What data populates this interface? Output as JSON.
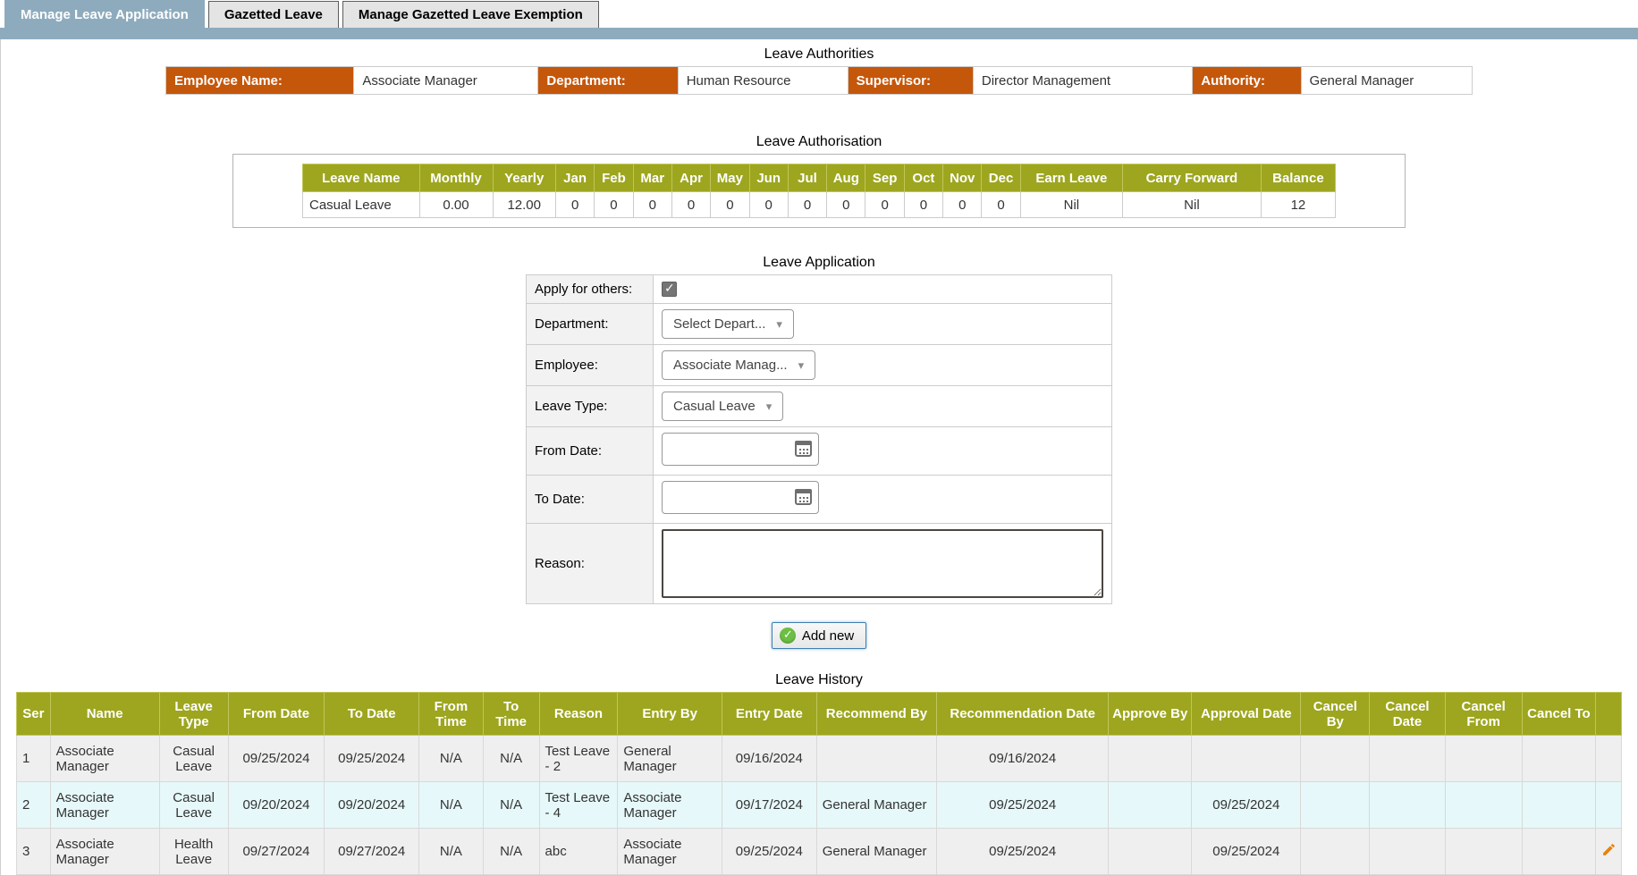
{
  "tabs": [
    {
      "label": "Manage Leave Application",
      "active": true
    },
    {
      "label": "Gazetted Leave",
      "active": false
    },
    {
      "label": "Manage Gazetted Leave Exemption",
      "active": false
    }
  ],
  "colors": {
    "accent_orange": "#C5570B",
    "olive_header": "#9DA61E",
    "active_tab_blue": "#8EABBE",
    "row_gray": "#EFEFEF",
    "row_cyan": "#E6F8FA",
    "add_button_border_blue": "#3C7FB1",
    "check_circle_green": "#6CBE44",
    "edit_pencil_orange": "#E8820C"
  },
  "icons": {
    "dropdown_caret": "chevron-down",
    "date_picker": "calendar",
    "add_new": "check-circle",
    "edit": "pencil"
  },
  "leave_authorities": {
    "title": "Leave Authorities",
    "fields": [
      {
        "label": "Employee Name:",
        "value": "Associate Manager"
      },
      {
        "label": "Department:",
        "value": "Human Resource"
      },
      {
        "label": "Supervisor:",
        "value": "Director Management"
      },
      {
        "label": "Authority:",
        "value": "General Manager"
      }
    ]
  },
  "leave_authorisation": {
    "title": "Leave Authorisation",
    "columns": [
      "Leave Name",
      "Monthly",
      "Yearly",
      "Jan",
      "Feb",
      "Mar",
      "Apr",
      "May",
      "Jun",
      "Jul",
      "Aug",
      "Sep",
      "Oct",
      "Nov",
      "Dec",
      "Earn Leave",
      "Carry Forward",
      "Balance"
    ],
    "rows": [
      [
        "Casual Leave",
        "0.00",
        "12.00",
        "0",
        "0",
        "0",
        "0",
        "0",
        "0",
        "0",
        "0",
        "0",
        "0",
        "0",
        "0",
        "Nil",
        "Nil",
        "12"
      ]
    ]
  },
  "leave_application": {
    "title": "Leave Application",
    "apply_for_others_label": "Apply for others:",
    "apply_for_others_checked": true,
    "department_label": "Department:",
    "department_value": "Select Depart...",
    "employee_label": "Employee:",
    "employee_value": "Associate Manag...",
    "leave_type_label": "Leave Type:",
    "leave_type_value": "Casual Leave",
    "from_date_label": "From Date:",
    "from_date_value": "",
    "to_date_label": "To Date:",
    "to_date_value": "",
    "reason_label": "Reason:",
    "reason_value": "",
    "add_new_label": "Add new"
  },
  "leave_history": {
    "title": "Leave History",
    "columns": [
      "Ser",
      "Name",
      "Leave Type",
      "From Date",
      "To Date",
      "From Time",
      "To Time",
      "Reason",
      "Entry By",
      "Entry Date",
      "Recommend By",
      "Recommendation Date",
      "Approve By",
      "Approval Date",
      "Cancel By",
      "Cancel Date",
      "Cancel From",
      "Cancel To",
      ""
    ],
    "rows": [
      {
        "cells": [
          "1",
          "Associate Manager",
          "Casual Leave",
          "09/25/2024",
          "09/25/2024",
          "N/A",
          "N/A",
          "Test Leave - 2",
          "General Manager",
          "09/16/2024",
          "",
          "09/16/2024",
          "",
          "",
          "",
          "",
          "",
          ""
        ],
        "has_edit": false
      },
      {
        "cells": [
          "2",
          "Associate Manager",
          "Casual Leave",
          "09/20/2024",
          "09/20/2024",
          "N/A",
          "N/A",
          "Test Leave - 4",
          "Associate Manager",
          "09/17/2024",
          "General Manager",
          "09/25/2024",
          "",
          "09/25/2024",
          "",
          "",
          "",
          ""
        ],
        "has_edit": false
      },
      {
        "cells": [
          "3",
          "Associate Manager",
          "Health Leave",
          "09/27/2024",
          "09/27/2024",
          "N/A",
          "N/A",
          "abc",
          "Associate Manager",
          "09/25/2024",
          "General Manager",
          "09/25/2024",
          "",
          "09/25/2024",
          "",
          "",
          "",
          ""
        ],
        "has_edit": true
      }
    ]
  }
}
